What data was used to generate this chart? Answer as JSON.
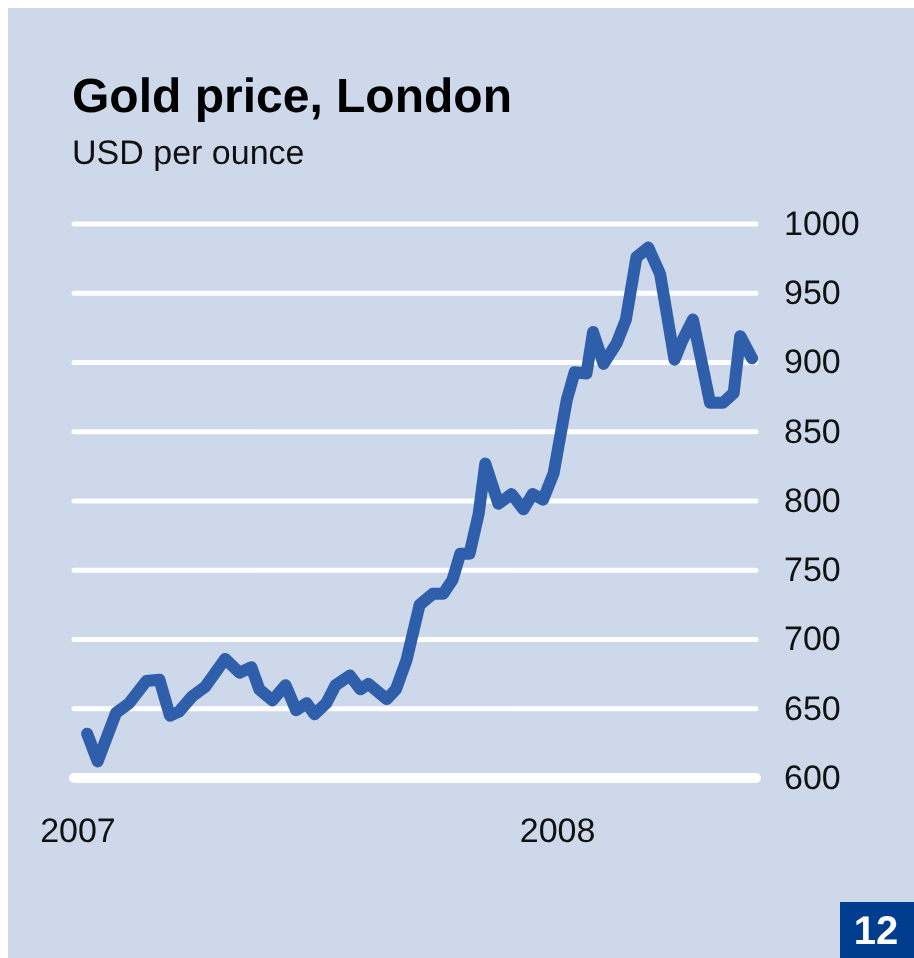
{
  "chart_data": {
    "type": "line",
    "title": "Gold price, London",
    "subtitle": "USD per ounce",
    "x": [
      "2007-01-08",
      "2007-01-16",
      "2007-01-30",
      "2007-02-09",
      "2007-02-22",
      "2007-03-04",
      "2007-03-12",
      "2007-03-19",
      "2007-03-29",
      "2007-04-08",
      "2007-04-23",
      "2007-05-04",
      "2007-05-13",
      "2007-05-19",
      "2007-05-29",
      "2007-06-08",
      "2007-06-16",
      "2007-06-24",
      "2007-06-30",
      "2007-07-09",
      "2007-07-16",
      "2007-07-27",
      "2007-08-04",
      "2007-08-10",
      "2007-08-24",
      "2007-08-31",
      "2007-09-08",
      "2007-09-18",
      "2007-09-28",
      "2007-10-06",
      "2007-10-13",
      "2007-10-19",
      "2007-10-26",
      "2007-11-02",
      "2007-11-07",
      "2007-11-17",
      "2007-11-27",
      "2007-12-06",
      "2007-12-13",
      "2007-12-21",
      "2007-12-29",
      "2008-01-08",
      "2008-01-14",
      "2008-01-23",
      "2008-01-28",
      "2008-02-05",
      "2008-02-15",
      "2008-02-22",
      "2008-03-01",
      "2008-03-10",
      "2008-03-19",
      "2008-03-30",
      "2008-04-05",
      "2008-04-13",
      "2008-04-26",
      "2008-05-06",
      "2008-05-14",
      "2008-05-19",
      "2008-05-28"
    ],
    "series": [
      {
        "color": "#2f5faa",
        "values": [
          632,
          612,
          647,
          654,
          670,
          671,
          645,
          648,
          659,
          666,
          686,
          676,
          680,
          664,
          656,
          667,
          649,
          654,
          646,
          654,
          667,
          674,
          664,
          668,
          657,
          664,
          685,
          725,
          733,
          733,
          743,
          762,
          762,
          791,
          827,
          798,
          805,
          794,
          805,
          801,
          820,
          873,
          893,
          892,
          922,
          899,
          914,
          931,
          976,
          983,
          964,
          902,
          916,
          931,
          871,
          871,
          878,
          919,
          903
        ]
      }
    ],
    "xlim": [
      "2006-12-29",
      "2008-05-31"
    ],
    "xticks": [
      {
        "value": "2007-01-01",
        "label": "2007"
      },
      {
        "value": "2008-01-01",
        "label": "2008"
      }
    ],
    "ylim": [
      600,
      1000
    ],
    "yticks": [
      600,
      650,
      700,
      750,
      800,
      850,
      900,
      950,
      1000
    ],
    "grid": "y",
    "line_style": "solid",
    "annotations": [
      "12"
    ]
  }
}
